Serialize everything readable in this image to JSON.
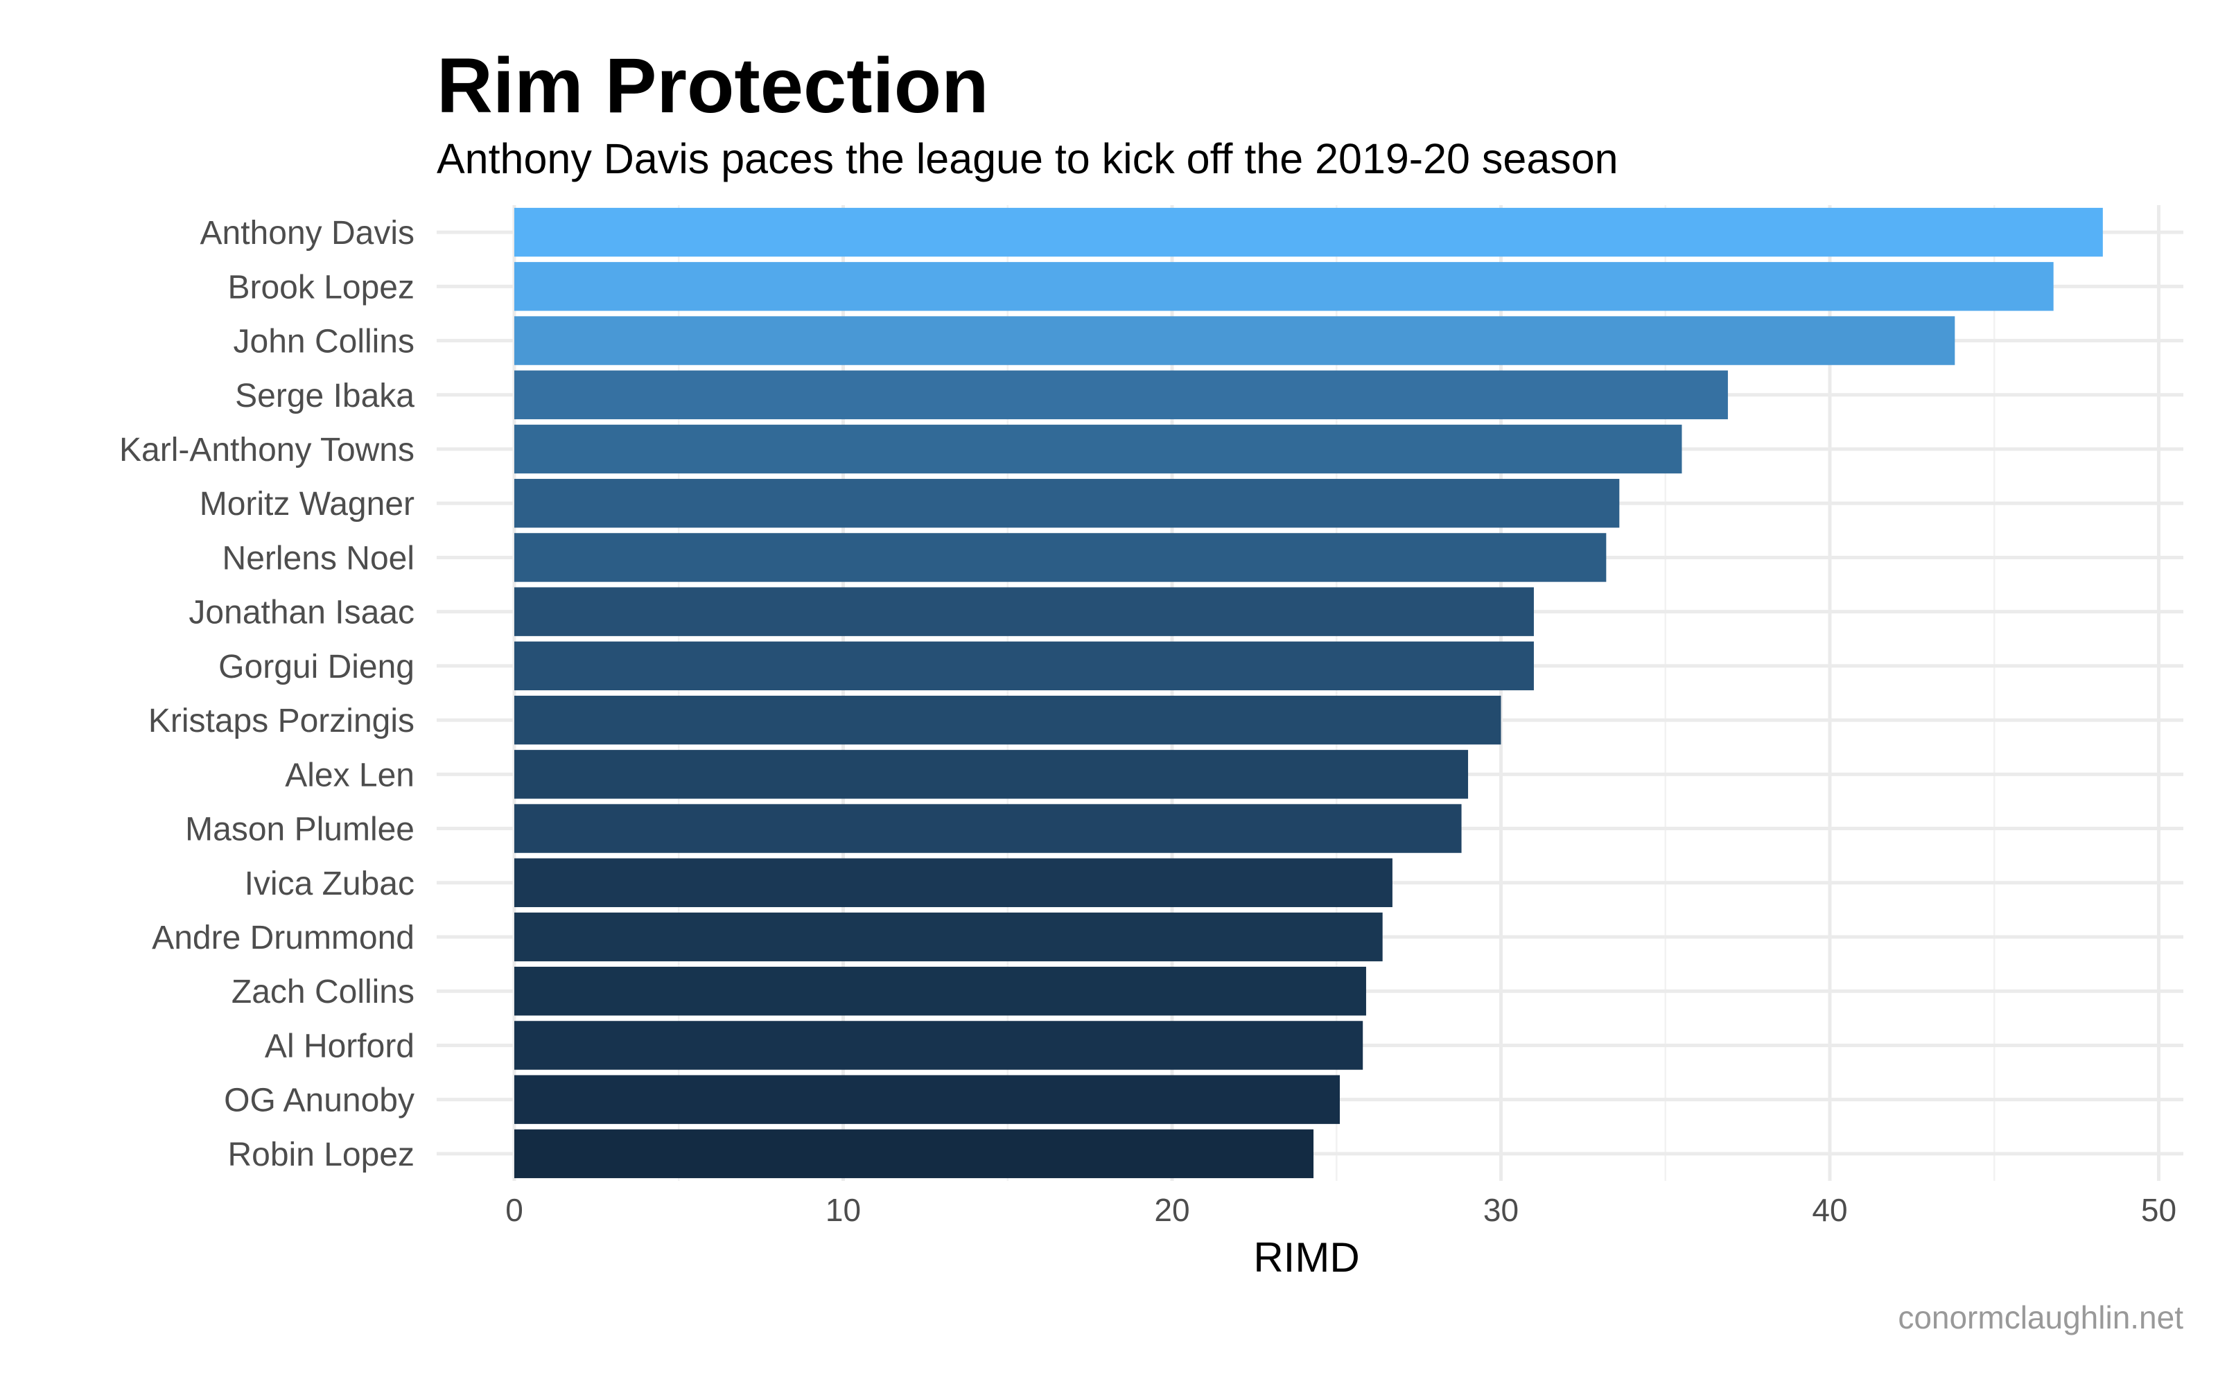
{
  "chart_data": {
    "type": "bar",
    "orientation": "horizontal",
    "title": "Rim Protection",
    "subtitle": "Anthony Davis paces the league to kick off the 2019-20 season",
    "xlabel": "RIMD",
    "ylabel": "",
    "caption": "conormclaughlin.net",
    "xlim": [
      0,
      51
    ],
    "xticks": [
      0,
      10,
      20,
      30,
      40,
      50
    ],
    "grid": true,
    "legend": "none",
    "color_low": "#132b43",
    "color_high": "#56b1f7",
    "categories": [
      "Anthony Davis",
      "Brook Lopez",
      "John Collins",
      "Serge Ibaka",
      "Karl-Anthony Towns",
      "Moritz Wagner",
      "Nerlens Noel",
      "Jonathan Isaac",
      "Gorgui Dieng",
      "Kristaps Porzingis",
      "Alex Len",
      "Mason Plumlee",
      "Ivica Zubac",
      "Andre Drummond",
      "Zach Collins",
      "Al Horford",
      "OG Anunoby",
      "Robin Lopez"
    ],
    "values": [
      48.3,
      46.8,
      43.8,
      36.9,
      35.5,
      33.6,
      33.2,
      31.0,
      31.0,
      30.0,
      29.0,
      28.8,
      26.7,
      26.4,
      25.9,
      25.8,
      25.1,
      24.3
    ]
  }
}
